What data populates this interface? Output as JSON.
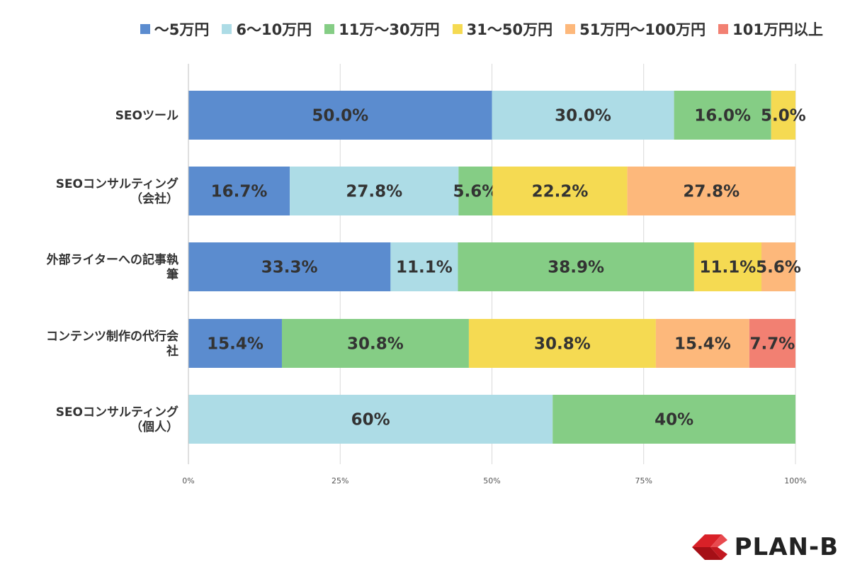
{
  "chart_data": {
    "type": "bar",
    "orientation": "horizontal",
    "stacked": true,
    "categories": [
      "SEOツール",
      "SEOコンサルティング（会社）",
      "外部ライターへの記事執筆",
      "コンテンツ制作の代行会社",
      "SEOコンサルティング（個人）"
    ],
    "series": [
      {
        "name": "〜5万円",
        "color": "#5b8ccf",
        "values": [
          50.0,
          16.7,
          33.3,
          15.4,
          0
        ],
        "labels": [
          "50.0%",
          "16.7%",
          "33.3%",
          "15.4%",
          ""
        ]
      },
      {
        "name": "6〜10万円",
        "color": "#addce6",
        "values": [
          30.0,
          27.8,
          11.1,
          0,
          60
        ],
        "labels": [
          "30.0%",
          "27.8%",
          "11.1%",
          "",
          "60%"
        ]
      },
      {
        "name": "11万〜30万円",
        "color": "#85cd85",
        "values": [
          16.0,
          5.6,
          38.9,
          30.8,
          40
        ],
        "labels": [
          "16.0%",
          "5.6%",
          "38.9%",
          "30.8%",
          "40%"
        ]
      },
      {
        "name": "31〜50万円",
        "color": "#f5da52",
        "values": [
          5.0,
          22.2,
          11.1,
          30.8,
          0
        ],
        "labels": [
          "5.0%",
          "22.2%",
          "11.1%",
          "30.8%",
          ""
        ]
      },
      {
        "name": "51万円〜100万円",
        "color": "#fdb87b",
        "values": [
          0,
          27.8,
          5.6,
          15.4,
          0
        ],
        "labels": [
          "",
          "27.8%",
          "5.6%",
          "15.4%",
          ""
        ]
      },
      {
        "name": "101万円以上",
        "color": "#f28072",
        "values": [
          0,
          0,
          0,
          7.7,
          0
        ],
        "labels": [
          "",
          "",
          "",
          "7.7%",
          ""
        ]
      }
    ],
    "xlim": [
      0,
      100
    ],
    "xticks": [
      "0%",
      "25%",
      "50%",
      "75%",
      "100%"
    ],
    "grid": true,
    "legend_position": "top"
  },
  "logo": {
    "text": "PLAN-B"
  }
}
